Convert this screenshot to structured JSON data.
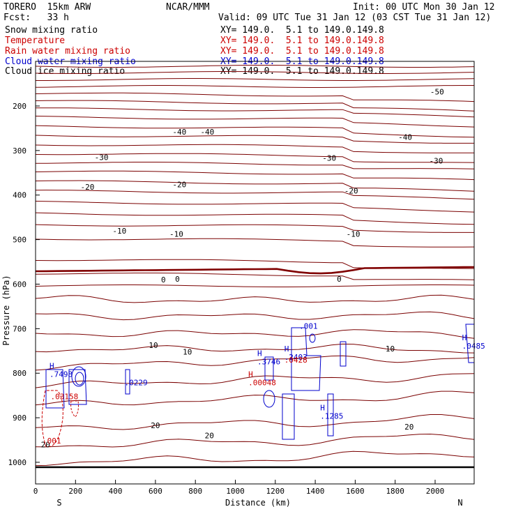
{
  "header": {
    "model": "TORERO  15km ARW",
    "center": "NCAR/MMM",
    "init": "Init: 00 UTC Mon 30 Jan 12",
    "fcst": "Fcst:   33 h",
    "valid": "Valid: 09 UTC Tue 31 Jan 12 (03 CST Tue 31 Jan 12)"
  },
  "fields": [
    {
      "name": "Snow mixing ratio",
      "xy": "XY= 149.0.  5.1 to 149.0.149.8",
      "color": "#000000"
    },
    {
      "name": "Temperature",
      "xy": "XY= 149.0.  5.1 to 149.0.149.8",
      "color": "#cc0000"
    },
    {
      "name": "Rain water mixing ratio",
      "xy": "XY= 149.0.  5.1 to 149.0.149.8",
      "color": "#cc0000"
    },
    {
      "name": "Cloud water mixing ratio",
      "xy": "XY= 149.0.  5.1 to 149.0.149.8",
      "color": "#0000cc"
    },
    {
      "name": "Cloud ice mixing ratio",
      "xy": "XY= 149.0.  5.1 to 149.0.149.8",
      "color": "#000000"
    }
  ],
  "chart_data": {
    "type": "line",
    "xlabel": "Distance (km)",
    "ylabel": "Pressure (hPa)",
    "xlim": [
      0,
      2200
    ],
    "ylim": [
      1050,
      100
    ],
    "x_ticks": [
      0,
      200,
      400,
      600,
      800,
      1000,
      1200,
      1400,
      1600,
      1800,
      2000
    ],
    "y_ticks": [
      200,
      300,
      400,
      500,
      600,
      700,
      800,
      900,
      1000
    ],
    "x_end_labels": {
      "left": "S",
      "right": "N"
    },
    "temperature_color": "#7a0000",
    "freezing_color": "#800000",
    "rain_color": "#cc0000",
    "cloud_color": "#0000cc",
    "temperature_labels": [
      {
        "text": "-50",
        "x": 2010,
        "p": 168
      },
      {
        "text": "-40",
        "x": 720,
        "p": 258
      },
      {
        "text": "-40",
        "x": 860,
        "p": 258
      },
      {
        "text": "-40",
        "x": 1850,
        "p": 270
      },
      {
        "text": "-30",
        "x": 330,
        "p": 315
      },
      {
        "text": "-30",
        "x": 1470,
        "p": 317
      },
      {
        "text": "-30",
        "x": 2005,
        "p": 323
      },
      {
        "text": "-20",
        "x": 260,
        "p": 382
      },
      {
        "text": "-20",
        "x": 720,
        "p": 376
      },
      {
        "text": "-20",
        "x": 1580,
        "p": 390
      },
      {
        "text": "-10",
        "x": 420,
        "p": 480
      },
      {
        "text": "-10",
        "x": 705,
        "p": 487
      },
      {
        "text": "-10",
        "x": 1590,
        "p": 487
      },
      {
        "text": "0",
        "x": 640,
        "p": 590
      },
      {
        "text": "0",
        "x": 710,
        "p": 588
      },
      {
        "text": "0",
        "x": 1520,
        "p": 588
      },
      {
        "text": "10",
        "x": 590,
        "p": 737
      },
      {
        "text": "10",
        "x": 760,
        "p": 752
      },
      {
        "text": "10",
        "x": 1775,
        "p": 745
      },
      {
        "text": "20",
        "x": 600,
        "p": 917
      },
      {
        "text": "20",
        "x": 870,
        "p": 940
      },
      {
        "text": "20",
        "x": 1870,
        "p": 920
      },
      {
        "text": "20",
        "x": 50,
        "p": 960
      }
    ],
    "extrema": [
      {
        "mark": "H",
        "value": ".7498",
        "x": 70,
        "p": 808,
        "color": "#0000cc"
      },
      {
        "mark": "",
        "value": ".03158",
        "x": 75,
        "p": 858,
        "color": "#cc0000"
      },
      {
        "mark": "",
        "value": ".0229",
        "x": 445,
        "p": 827,
        "color": "#0000cc"
      },
      {
        "mark": "H",
        "value": ".3746",
        "x": 1110,
        "p": 780,
        "color": "#0000cc"
      },
      {
        "mark": "H",
        "value": ".00048",
        "x": 1065,
        "p": 827,
        "color": "#cc0000"
      },
      {
        "mark": "H",
        "value": ".2403",
        "x": 1245,
        "p": 770,
        "color": "#0000cc"
      },
      {
        "mark": "",
        "value": ".0428",
        "x": 1245,
        "p": 776,
        "color": "#cc0000"
      },
      {
        "mark": "",
        "value": ".001",
        "x": 1320,
        "p": 700,
        "color": "#0000cc"
      },
      {
        "mark": "H",
        "value": ".1285",
        "x": 1425,
        "p": 902,
        "color": "#0000cc"
      },
      {
        "mark": "H",
        "value": ".0485",
        "x": 2135,
        "p": 745,
        "color": "#0000cc"
      },
      {
        "mark": "",
        "value": ".001",
        "x": 35,
        "p": 958,
        "color": "#cc0000"
      }
    ]
  }
}
